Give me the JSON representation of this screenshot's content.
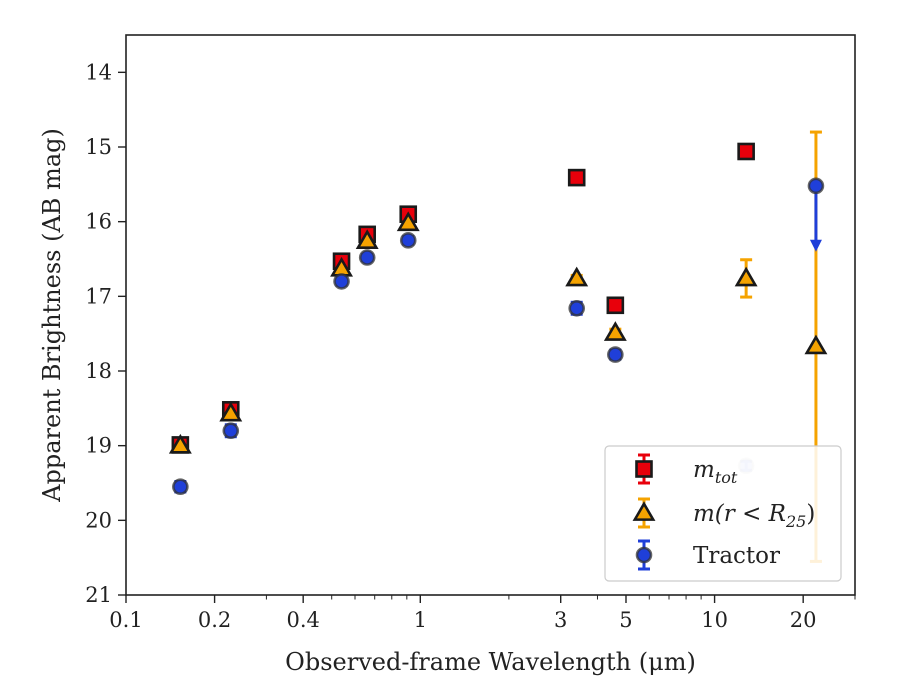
{
  "chart_data": {
    "type": "scatter",
    "xlabel": "Observed-frame Wavelength (μm)",
    "ylabel": "Apparent Brightness (AB mag)",
    "x_scale": "log",
    "xlim": [
      0.1,
      30
    ],
    "ylim": [
      21,
      13.5
    ],
    "y_inverted": true,
    "x_ticks": [
      {
        "value": 0.1,
        "label": "0.1"
      },
      {
        "value": 0.2,
        "label": "0.2"
      },
      {
        "value": 0.4,
        "label": "0.4"
      },
      {
        "value": 1,
        "label": "1"
      },
      {
        "value": 3,
        "label": "3"
      },
      {
        "value": 5,
        "label": "5"
      },
      {
        "value": 10,
        "label": "10"
      },
      {
        "value": 20,
        "label": "20"
      }
    ],
    "y_ticks": [
      {
        "value": 14,
        "label": "14"
      },
      {
        "value": 15,
        "label": "15"
      },
      {
        "value": 16,
        "label": "16"
      },
      {
        "value": 17,
        "label": "17"
      },
      {
        "value": 18,
        "label": "18"
      },
      {
        "value": 19,
        "label": "19"
      },
      {
        "value": 20,
        "label": "20"
      },
      {
        "value": 21,
        "label": "21"
      }
    ],
    "grid": false,
    "legend_position": "bottom-right",
    "series": [
      {
        "name": "m_tot",
        "marker": "square",
        "face_color": "#e8000b",
        "edge_color": "#1a1a1a",
        "error_color": "#e8000b",
        "points": [
          {
            "x": 0.153,
            "y": 18.99,
            "err": 0.08
          },
          {
            "x": 0.227,
            "y": 18.52,
            "err": 0.06
          },
          {
            "x": 0.54,
            "y": 16.53,
            "err": 0.04
          },
          {
            "x": 0.66,
            "y": 16.17,
            "err": 0.04
          },
          {
            "x": 0.91,
            "y": 15.9,
            "err": 0.04
          },
          {
            "x": 3.4,
            "y": 15.41,
            "err": 0.03
          },
          {
            "x": 4.6,
            "y": 17.12,
            "err": 0.04
          },
          {
            "x": 12.8,
            "y": 15.06,
            "err": 0.03
          }
        ]
      },
      {
        "name": "m(r < R25)",
        "marker": "triangle",
        "face_color": "#f5a300",
        "edge_color": "#1a1a1a",
        "error_color": "#f5a300",
        "points": [
          {
            "x": 0.153,
            "y": 19.0,
            "err": 0.05
          },
          {
            "x": 0.227,
            "y": 18.57,
            "err": 0.05
          },
          {
            "x": 0.54,
            "y": 16.63,
            "err": 0.04
          },
          {
            "x": 0.66,
            "y": 16.26,
            "err": 0.04
          },
          {
            "x": 0.91,
            "y": 16.02,
            "err": 0.04
          },
          {
            "x": 3.4,
            "y": 16.76,
            "err": 0.04
          },
          {
            "x": 4.6,
            "y": 17.49,
            "err": 0.05
          },
          {
            "x": 12.8,
            "y": 16.76,
            "err": 0.25
          },
          {
            "x": 22.1,
            "y": 17.67,
            "err_low": 2.88,
            "err_high": 2.87
          }
        ]
      },
      {
        "name": "Tractor",
        "marker": "circle",
        "face_color": "#1f3fd9",
        "edge_color": "#333333",
        "error_color": "#1f3fd9",
        "points": [
          {
            "x": 0.153,
            "y": 19.55,
            "err": 0.07
          },
          {
            "x": 0.227,
            "y": 18.8,
            "err": 0.08
          },
          {
            "x": 0.54,
            "y": 16.8,
            "err": 0.05
          },
          {
            "x": 0.66,
            "y": 16.48,
            "err": 0.04
          },
          {
            "x": 0.91,
            "y": 16.25,
            "err": 0.05
          },
          {
            "x": 3.4,
            "y": 17.16,
            "err": 0.08
          },
          {
            "x": 4.6,
            "y": 17.78,
            "err": 0.06
          },
          {
            "x": 12.8,
            "y": 19.27,
            "err": 0.06,
            "faded": true
          },
          {
            "x": 22.1,
            "y": 15.52,
            "upper_limit": true,
            "arrow_to": 16.35
          }
        ]
      }
    ]
  },
  "legend": {
    "items": [
      {
        "label_base": "m",
        "label_sub": "tot",
        "label_plain": ""
      },
      {
        "label_base": "m(r < R",
        "label_sub": "25",
        "label_plain": ")"
      },
      {
        "label_base": "",
        "label_sub": "",
        "label_plain": "Tractor"
      }
    ]
  }
}
